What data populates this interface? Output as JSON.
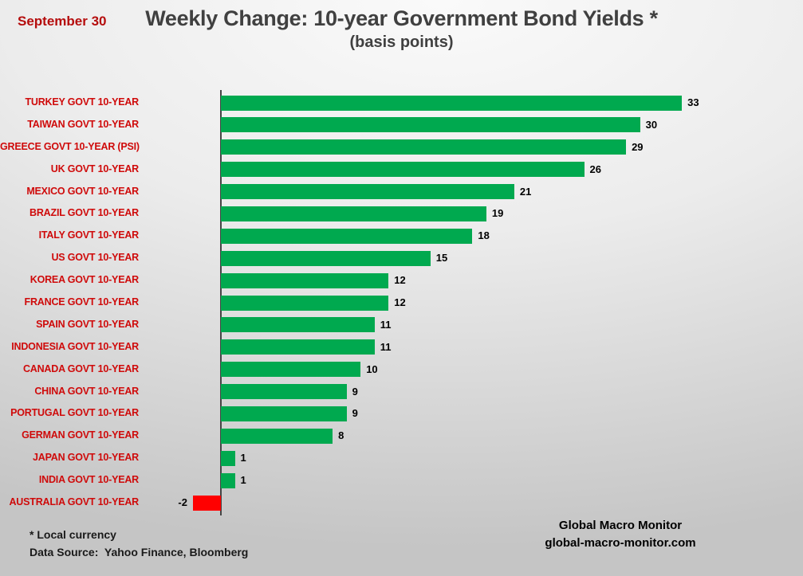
{
  "header": {
    "date": "September 30",
    "title": "Weekly Change: 10-year Government Bond Yields *",
    "subtitle": "(basis points)"
  },
  "chart_data": {
    "type": "bar",
    "orientation": "horizontal",
    "title": "Weekly Change: 10-year Government Bond Yields *",
    "subtitle": "(basis points)",
    "unit": "basis points",
    "categories": [
      "TURKEY GOVT 10-YEAR",
      "TAIWAN GOVT 10-YEAR",
      "GREECE GOVT 10-YEAR (PSI)",
      "UK GOVT 10-YEAR",
      "MEXICO GOVT 10-YEAR",
      "BRAZIL GOVT 10-YEAR",
      "ITALY GOVT 10-YEAR",
      "US GOVT 10-YEAR",
      "KOREA GOVT 10-YEAR",
      "FRANCE GOVT 10-YEAR",
      "SPAIN GOVT 10-YEAR",
      "INDONESIA GOVT 10-YEAR",
      "CANADA GOVT 10-YEAR",
      "CHINA GOVT 10-YEAR",
      "PORTUGAL GOVT 10-YEAR",
      "GERMAN GOVT 10-YEAR",
      "JAPAN GOVT 10-YEAR",
      "INDIA GOVT 10-YEAR",
      "AUSTRALIA GOVT 10-YEAR"
    ],
    "values": [
      33,
      30,
      29,
      26,
      21,
      19,
      18,
      15,
      12,
      12,
      11,
      11,
      10,
      9,
      9,
      8,
      1,
      1,
      -2
    ],
    "value_labels": [
      "33",
      "30",
      "29",
      "26",
      "21",
      "19",
      "18",
      "15",
      "12",
      "12",
      "11",
      "11",
      "10",
      "9",
      "9",
      "8",
      "1",
      "1",
      "-2"
    ],
    "colors": {
      "positive_bar": "#00a94f",
      "negative_bar": "#ff0000",
      "category_label": "#cf0a0a",
      "value_label": "#000000",
      "axis": "#454545"
    },
    "xlim": [
      -5,
      36
    ],
    "grid": false,
    "legend": false
  },
  "footnotes": {
    "local_currency": "* Local currency",
    "data_source": "Data Source:  Yahoo Finance, Bloomberg"
  },
  "branding": {
    "name": "Global Macro Monitor",
    "url": "global-macro-monitor.com"
  }
}
